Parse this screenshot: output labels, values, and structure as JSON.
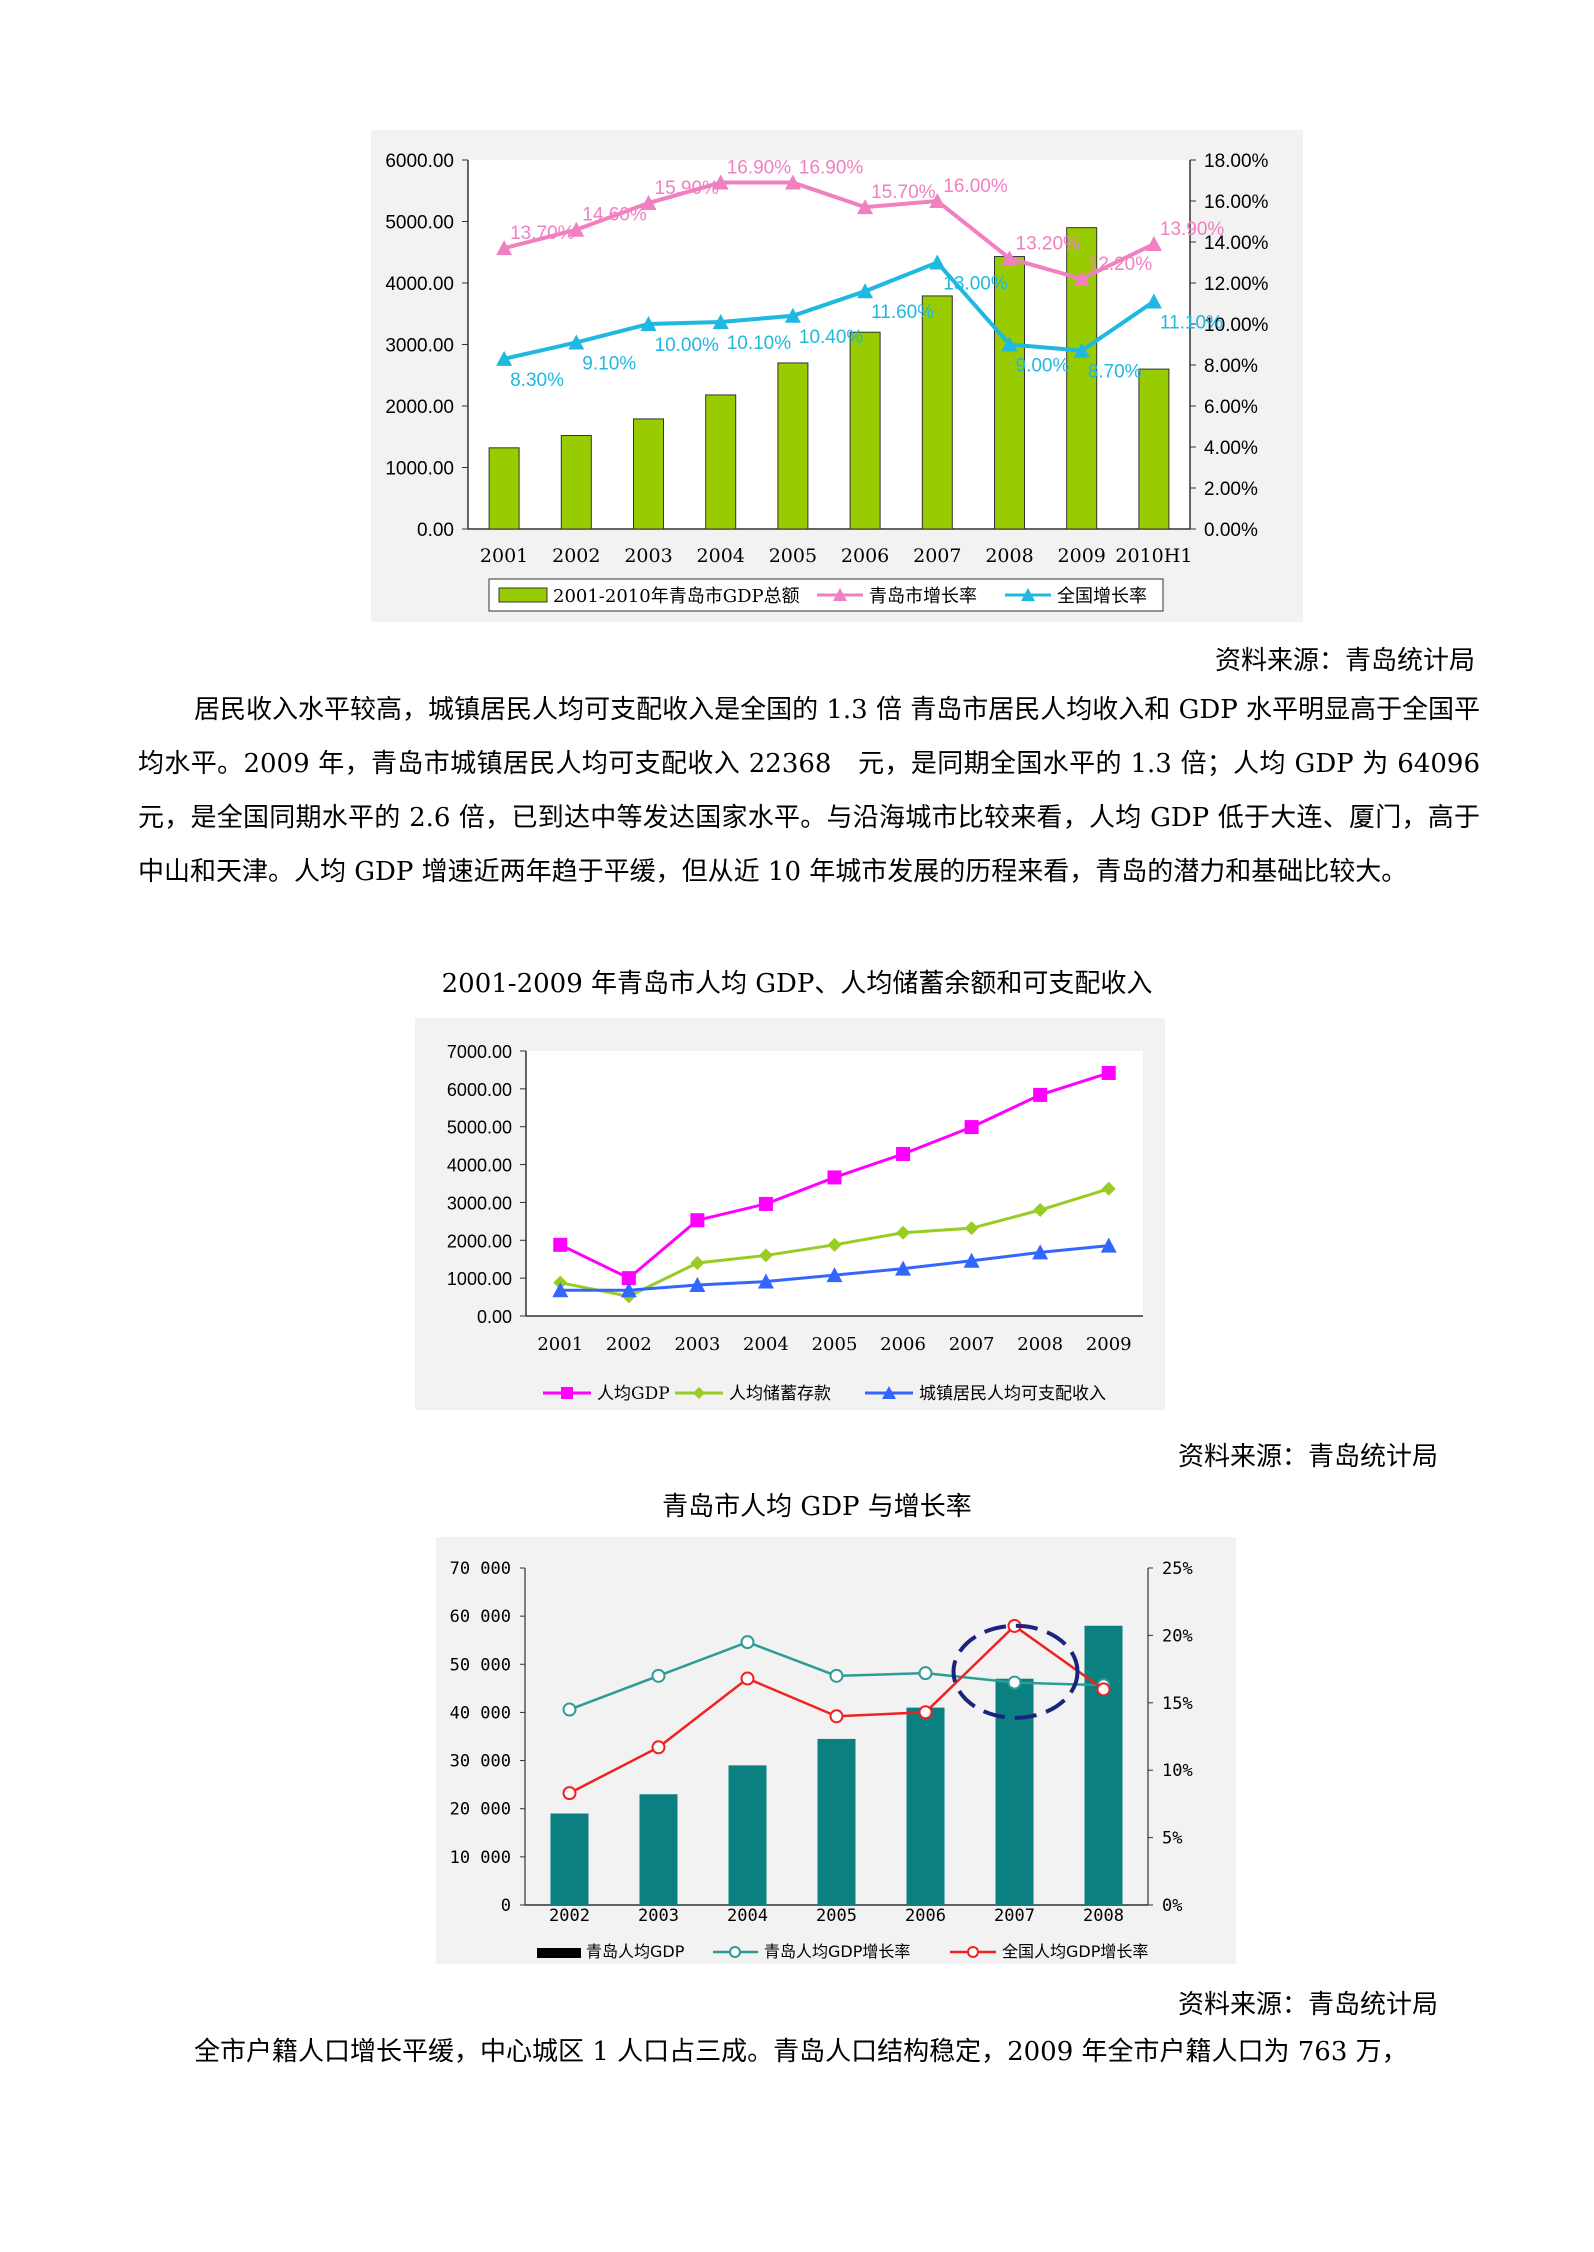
{
  "chart_data": [
    {
      "type": "bar",
      "categories": [
        "2001",
        "2002",
        "2003",
        "2004",
        "2005",
        "2006",
        "2007",
        "2008",
        "2009",
        "2010H1"
      ],
      "series": [
        {
          "name": "2001-2010年青岛市GDP总额",
          "type": "bar",
          "axis": "left",
          "values": [
            1320,
            1520,
            1790,
            2180,
            2700,
            3200,
            3790,
            4430,
            4900,
            2600
          ]
        },
        {
          "name": "青岛市增长率",
          "type": "line",
          "axis": "right",
          "color": "#f080c0",
          "values": [
            13.7,
            14.6,
            15.9,
            16.9,
            16.9,
            15.7,
            16.0,
            13.2,
            12.2,
            13.9
          ],
          "labels": [
            "13.70%",
            "14.60%",
            "15.90%",
            "16.90%",
            "16.90%",
            "15.70%",
            "16.00%",
            "13.20%",
            "12.20%",
            "13.90%"
          ]
        },
        {
          "name": "全国增长率",
          "type": "line",
          "axis": "right",
          "color": "#1fb8e0",
          "values": [
            8.3,
            9.1,
            10.0,
            10.1,
            10.4,
            11.6,
            13.0,
            9.0,
            8.7,
            11.1
          ],
          "labels": [
            "8.30%",
            "9.10%",
            "10.00%",
            "10.10%",
            "10.40%",
            "11.60%",
            "13.00%",
            "9.00%",
            "8.70%",
            "11.10%"
          ]
        }
      ],
      "y_ticks": [
        "0.00",
        "1000.00",
        "2000.00",
        "3000.00",
        "4000.00",
        "5000.00",
        "6000.00"
      ],
      "y2_ticks": [
        "0.00%",
        "2.00%",
        "4.00%",
        "6.00%",
        "8.00%",
        "10.00%",
        "12.00%",
        "14.00%",
        "16.00%",
        "18.00%"
      ],
      "ylim": [
        0,
        6000
      ],
      "y2lim": [
        0,
        18
      ],
      "legend": "bottom"
    },
    {
      "type": "line",
      "categories": [
        "2001",
        "2002",
        "2003",
        "2004",
        "2005",
        "2006",
        "2007",
        "2008",
        "2009"
      ],
      "series": [
        {
          "name": "人均GDP",
          "color": "#ff00ff",
          "marker": "square",
          "values": [
            1880,
            1000,
            2530,
            2960,
            3660,
            4280,
            4990,
            5840,
            6420
          ]
        },
        {
          "name": "人均储蓄存款",
          "color": "#99cc22",
          "marker": "diamond",
          "values": [
            880,
            520,
            1400,
            1600,
            1880,
            2200,
            2320,
            2800,
            3360
          ]
        },
        {
          "name": "城镇居民人均可支配收入",
          "color": "#3366ff",
          "marker": "triangle",
          "values": [
            680,
            680,
            820,
            910,
            1080,
            1250,
            1460,
            1680,
            1860
          ]
        }
      ],
      "y_ticks": [
        "0.00",
        "1000.00",
        "2000.00",
        "3000.00",
        "4000.00",
        "5000.00",
        "6000.00",
        "7000.00"
      ],
      "ylim": [
        0,
        7000
      ],
      "legend": "bottom"
    },
    {
      "type": "bar",
      "categories": [
        "2002",
        "2003",
        "2004",
        "2005",
        "2006",
        "2007",
        "2008"
      ],
      "series": [
        {
          "name": "青岛人均GDP",
          "type": "bar",
          "axis": "left",
          "color": "#0a8080",
          "values": [
            19000,
            23000,
            29000,
            34500,
            41000,
            47000,
            58000
          ]
        },
        {
          "name": "青岛人均GDP增长率",
          "type": "line",
          "axis": "right",
          "color": "#2e9c96",
          "values": [
            14.5,
            17.0,
            19.5,
            17.0,
            17.2,
            16.5,
            16.3
          ]
        },
        {
          "name": "全国人均GDP增长率",
          "type": "line",
          "axis": "right",
          "color": "#ee2222",
          "values": [
            8.3,
            11.7,
            16.8,
            14.0,
            14.3,
            20.7,
            16.0
          ]
        }
      ],
      "y_ticks": [
        "0",
        "10 000",
        "20 000",
        "30 000",
        "40 000",
        "50 000",
        "60 000",
        "70 000"
      ],
      "y2_ticks": [
        "0%",
        "5%",
        "10%",
        "15%",
        "20%",
        "25%"
      ],
      "ylim": [
        0,
        70000
      ],
      "y2lim": [
        0,
        25
      ],
      "annotation": "dashed-ellipse-2007",
      "legend": "bottom"
    }
  ],
  "source1": "资料来源：青岛统计局",
  "para1": "居民收入水平较高，城镇居民人均可支配收入是全国的 1.3 倍 青岛市居民人均收入和 GDP 水平明显高于全国平均水平。2009 年，青岛市城镇居民人均可支配收入 22368　元，是同期全国水平的 1.3 倍；人均 GDP 为 64096 元，是全国同期水平的 2.6 倍，已到达中等发达国家水平。与沿海城市比较来看，人均 GDP 低于大连、厦门，高于中山和天津。人均 GDP 增速近两年趋于平缓，但从近 10 年城市发展的历程来看，青岛的潜力和基础比较大。",
  "caption2": "2001-2009 年青岛市人均 GDP、人均储蓄余额和可支配收入",
  "source2": "资料来源：青岛统计局",
  "caption3": "青岛市人均 GDP 与增长率",
  "source3": "资料来源：青岛统计局",
  "para2": "全市户籍人口增长平缓，中心城区 1 人口占三成。青岛人口结构稳定，2009 年全市户籍人口为 763 万，"
}
